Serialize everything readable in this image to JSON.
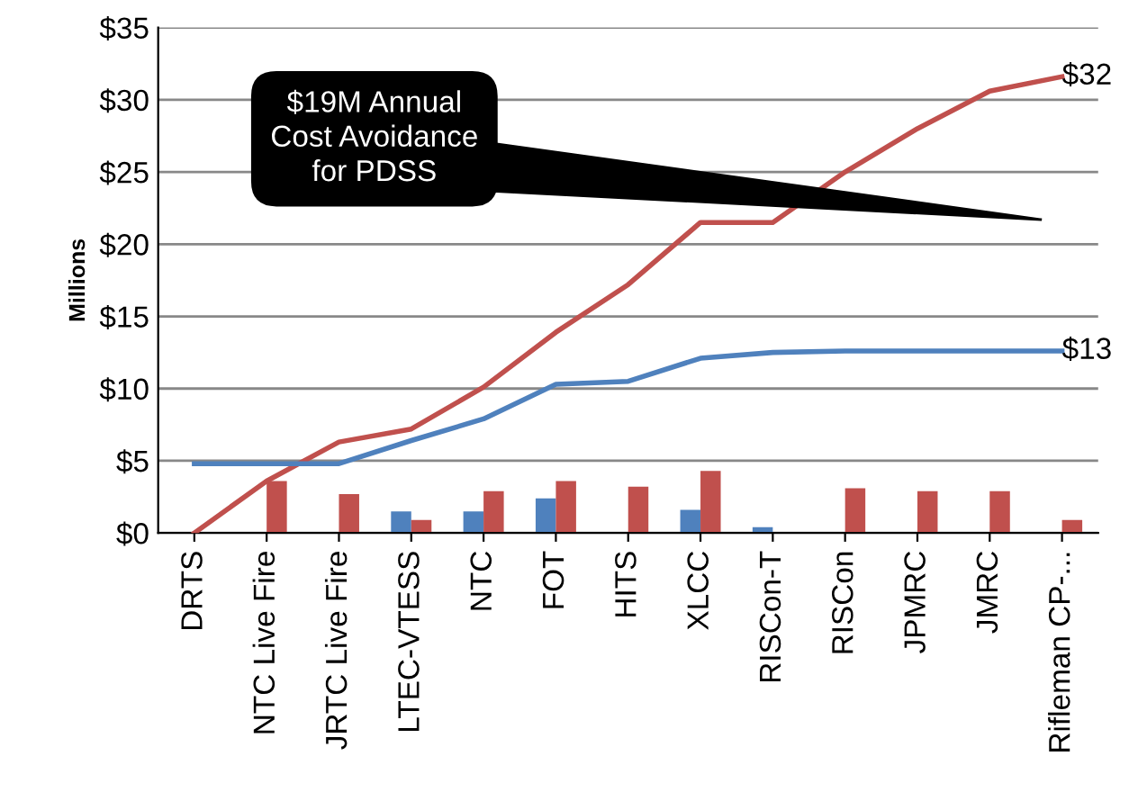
{
  "chart_data": {
    "type": "bar",
    "ylabel": "Millions",
    "categories": [
      "DRTS",
      "NTC Live Fire",
      "JRTC Live Fire",
      "LTEC-VTESS",
      "NTC",
      "FOT",
      "HITS",
      "XLCC",
      "RISCon-T",
      "RISCon",
      "JPMRC",
      "JMRC",
      "Rifleman CP-..."
    ],
    "series": [
      {
        "color": "#4f81bd",
        "values": [
          0,
          0,
          0,
          1.5,
          1.5,
          2.4,
          null,
          1.6,
          0.4,
          null,
          0,
          0,
          0
        ]
      },
      {
        "color": "#c0504d",
        "values": [
          0,
          3.6,
          2.7,
          0.9,
          2.9,
          3.6,
          3.2,
          4.3,
          0,
          3.1,
          2.9,
          2.9,
          0.9
        ]
      },
      {
        "type": "line",
        "color": "#c0504d",
        "values": [
          0,
          3.6,
          6.3,
          7.2,
          10.1,
          13.9,
          17.2,
          21.5,
          21.5,
          25,
          28,
          30.6,
          31.6
        ],
        "value_labels": [
          null,
          null,
          null,
          null,
          null,
          null,
          null,
          null,
          null,
          null,
          null,
          null,
          "$32"
        ]
      },
      {
        "type": "line",
        "color": "#4f81bd",
        "values": [
          4.8,
          4.8,
          4.8,
          6.4,
          7.9,
          10.3,
          10.5,
          12.1,
          12.5,
          12.6,
          12.6,
          12.6,
          12.6
        ],
        "value_labels": [
          null,
          null,
          null,
          null,
          null,
          null,
          null,
          null,
          null,
          null,
          null,
          null,
          "$13"
        ]
      }
    ],
    "ylim": [
      0,
      35
    ],
    "yticks": [
      {
        "value": 0,
        "label": "$0"
      },
      {
        "value": 5,
        "label": "$5"
      },
      {
        "value": 10,
        "label": "$10"
      },
      {
        "value": 15,
        "label": "$15"
      },
      {
        "value": 20,
        "label": "$20"
      },
      {
        "value": 25,
        "label": "$25"
      },
      {
        "value": 30,
        "label": "$30"
      },
      {
        "value": 35,
        "label": "$35"
      }
    ],
    "grid": "y",
    "legend": false,
    "marker": "none",
    "line_style": "solid",
    "annotations": [
      "$19M Annual\nCost Avoidance\nfor PDSS"
    ]
  }
}
